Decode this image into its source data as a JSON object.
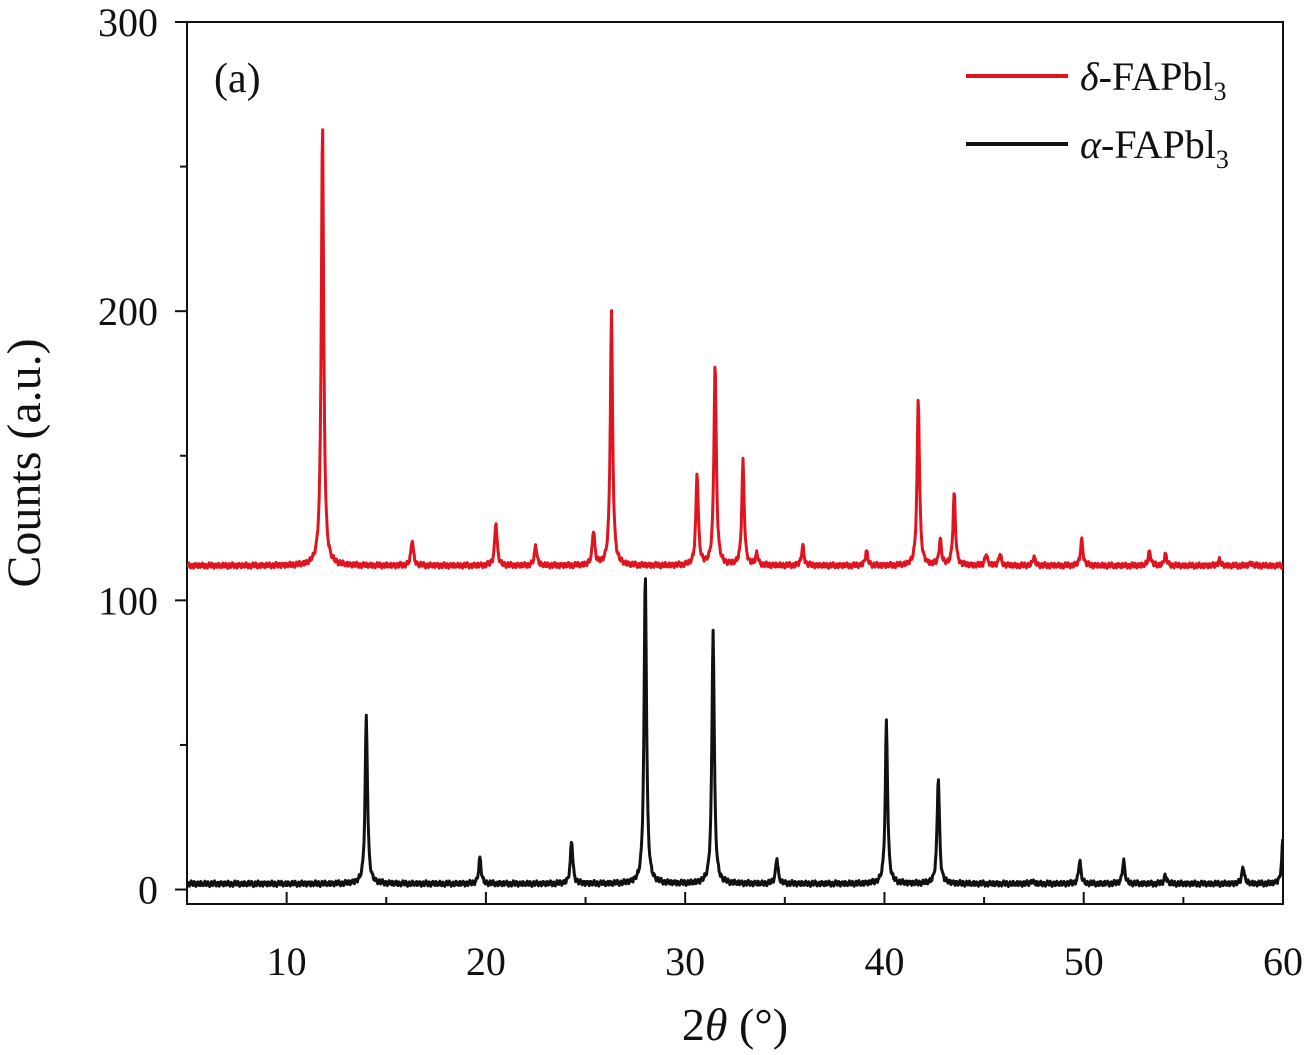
{
  "chart_data": {
    "type": "line",
    "panel_label": "(a)",
    "xlabel_prefix": "2",
    "xlabel_symbol": "θ",
    "xlabel_unit": " (°)",
    "ylabel": "Counts (a.u.)",
    "xlim": [
      5,
      60
    ],
    "ylim": [
      -5,
      300
    ],
    "x_ticks": [
      10,
      20,
      30,
      40,
      50,
      60
    ],
    "y_ticks": [
      0,
      100,
      200,
      300
    ],
    "x_tick_labels": [
      "10",
      "20",
      "30",
      "40",
      "50",
      "60"
    ],
    "y_tick_labels": [
      "0",
      "100",
      "200",
      "300"
    ],
    "legend_position": "top-right",
    "grid": false,
    "series": [
      {
        "name": "δ-FAPbI3",
        "legend_symbol": "δ",
        "legend_main": "-FAPbl",
        "legend_sub": "3",
        "color": "#e0141e",
        "baseline": 112,
        "peaks": [
          [
            11.8,
            265
          ],
          [
            16.3,
            121
          ],
          [
            20.5,
            127
          ],
          [
            22.5,
            119
          ],
          [
            25.4,
            124
          ],
          [
            26.3,
            200
          ],
          [
            30.6,
            144
          ],
          [
            31.5,
            182
          ],
          [
            32.9,
            148
          ],
          [
            33.6,
            116
          ],
          [
            35.9,
            119
          ],
          [
            39.1,
            117
          ],
          [
            41.7,
            170
          ],
          [
            42.8,
            121
          ],
          [
            43.5,
            137
          ],
          [
            45.1,
            116
          ],
          [
            45.8,
            116
          ],
          [
            47.5,
            115
          ],
          [
            49.9,
            121
          ],
          [
            53.3,
            117
          ],
          [
            54.1,
            116
          ],
          [
            56.8,
            114
          ],
          [
            58.4,
            113
          ]
        ]
      },
      {
        "name": "α-FAPbI3",
        "legend_symbol": "α",
        "legend_main": "-FAPbl",
        "legend_sub": "3",
        "color": "#111111",
        "baseline": 2,
        "peaks": [
          [
            14.0,
            60
          ],
          [
            19.7,
            11
          ],
          [
            24.3,
            17
          ],
          [
            28.0,
            110
          ],
          [
            31.4,
            90
          ],
          [
            34.6,
            11
          ],
          [
            40.1,
            58
          ],
          [
            42.7,
            39
          ],
          [
            47.4,
            3
          ],
          [
            49.8,
            10
          ],
          [
            52.0,
            10
          ],
          [
            54.1,
            5
          ],
          [
            58.0,
            8
          ],
          [
            60.0,
            18
          ]
        ]
      }
    ]
  }
}
